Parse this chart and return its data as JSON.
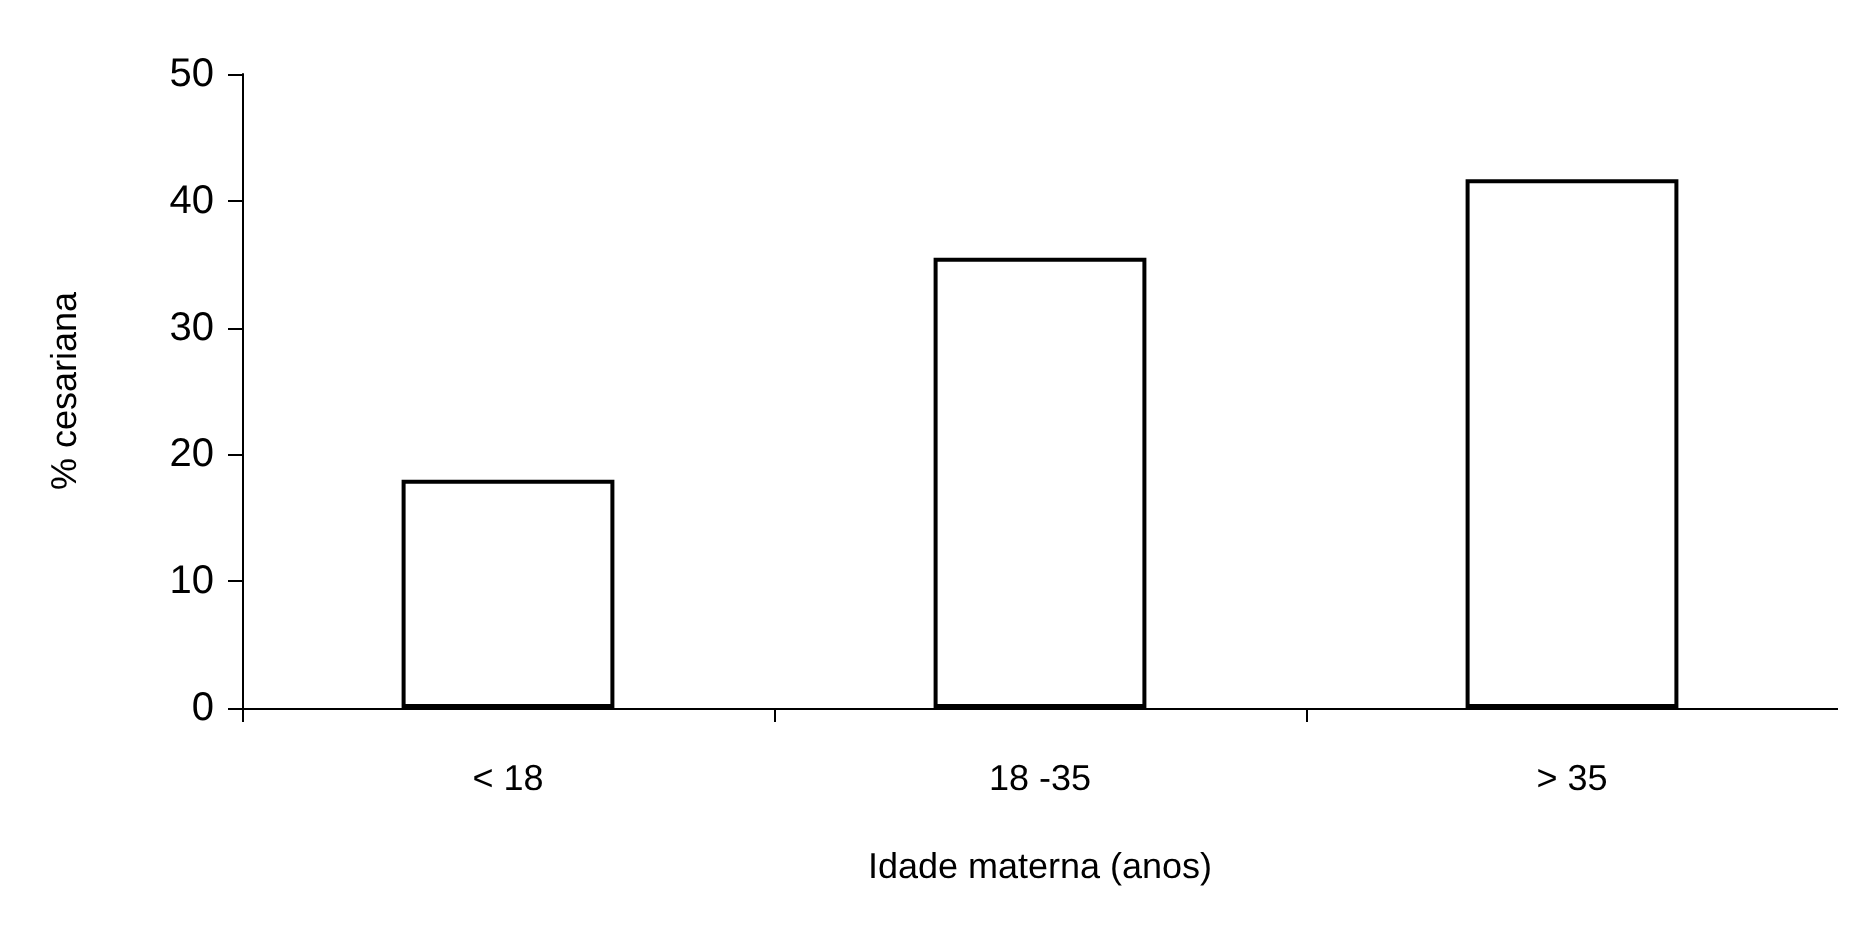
{
  "chart_data": {
    "type": "bar",
    "xlabel": "Idade materna (anos)",
    "ylabel": "% cesariana",
    "categories": [
      "< 18",
      "18 -35",
      "> 35"
    ],
    "values": [
      18,
      35.5,
      41.7
    ],
    "color": "#ffffff",
    "ylim": [
      0,
      50
    ],
    "yticks": [
      0,
      10,
      20,
      30,
      40,
      50
    ],
    "grid": false
  }
}
